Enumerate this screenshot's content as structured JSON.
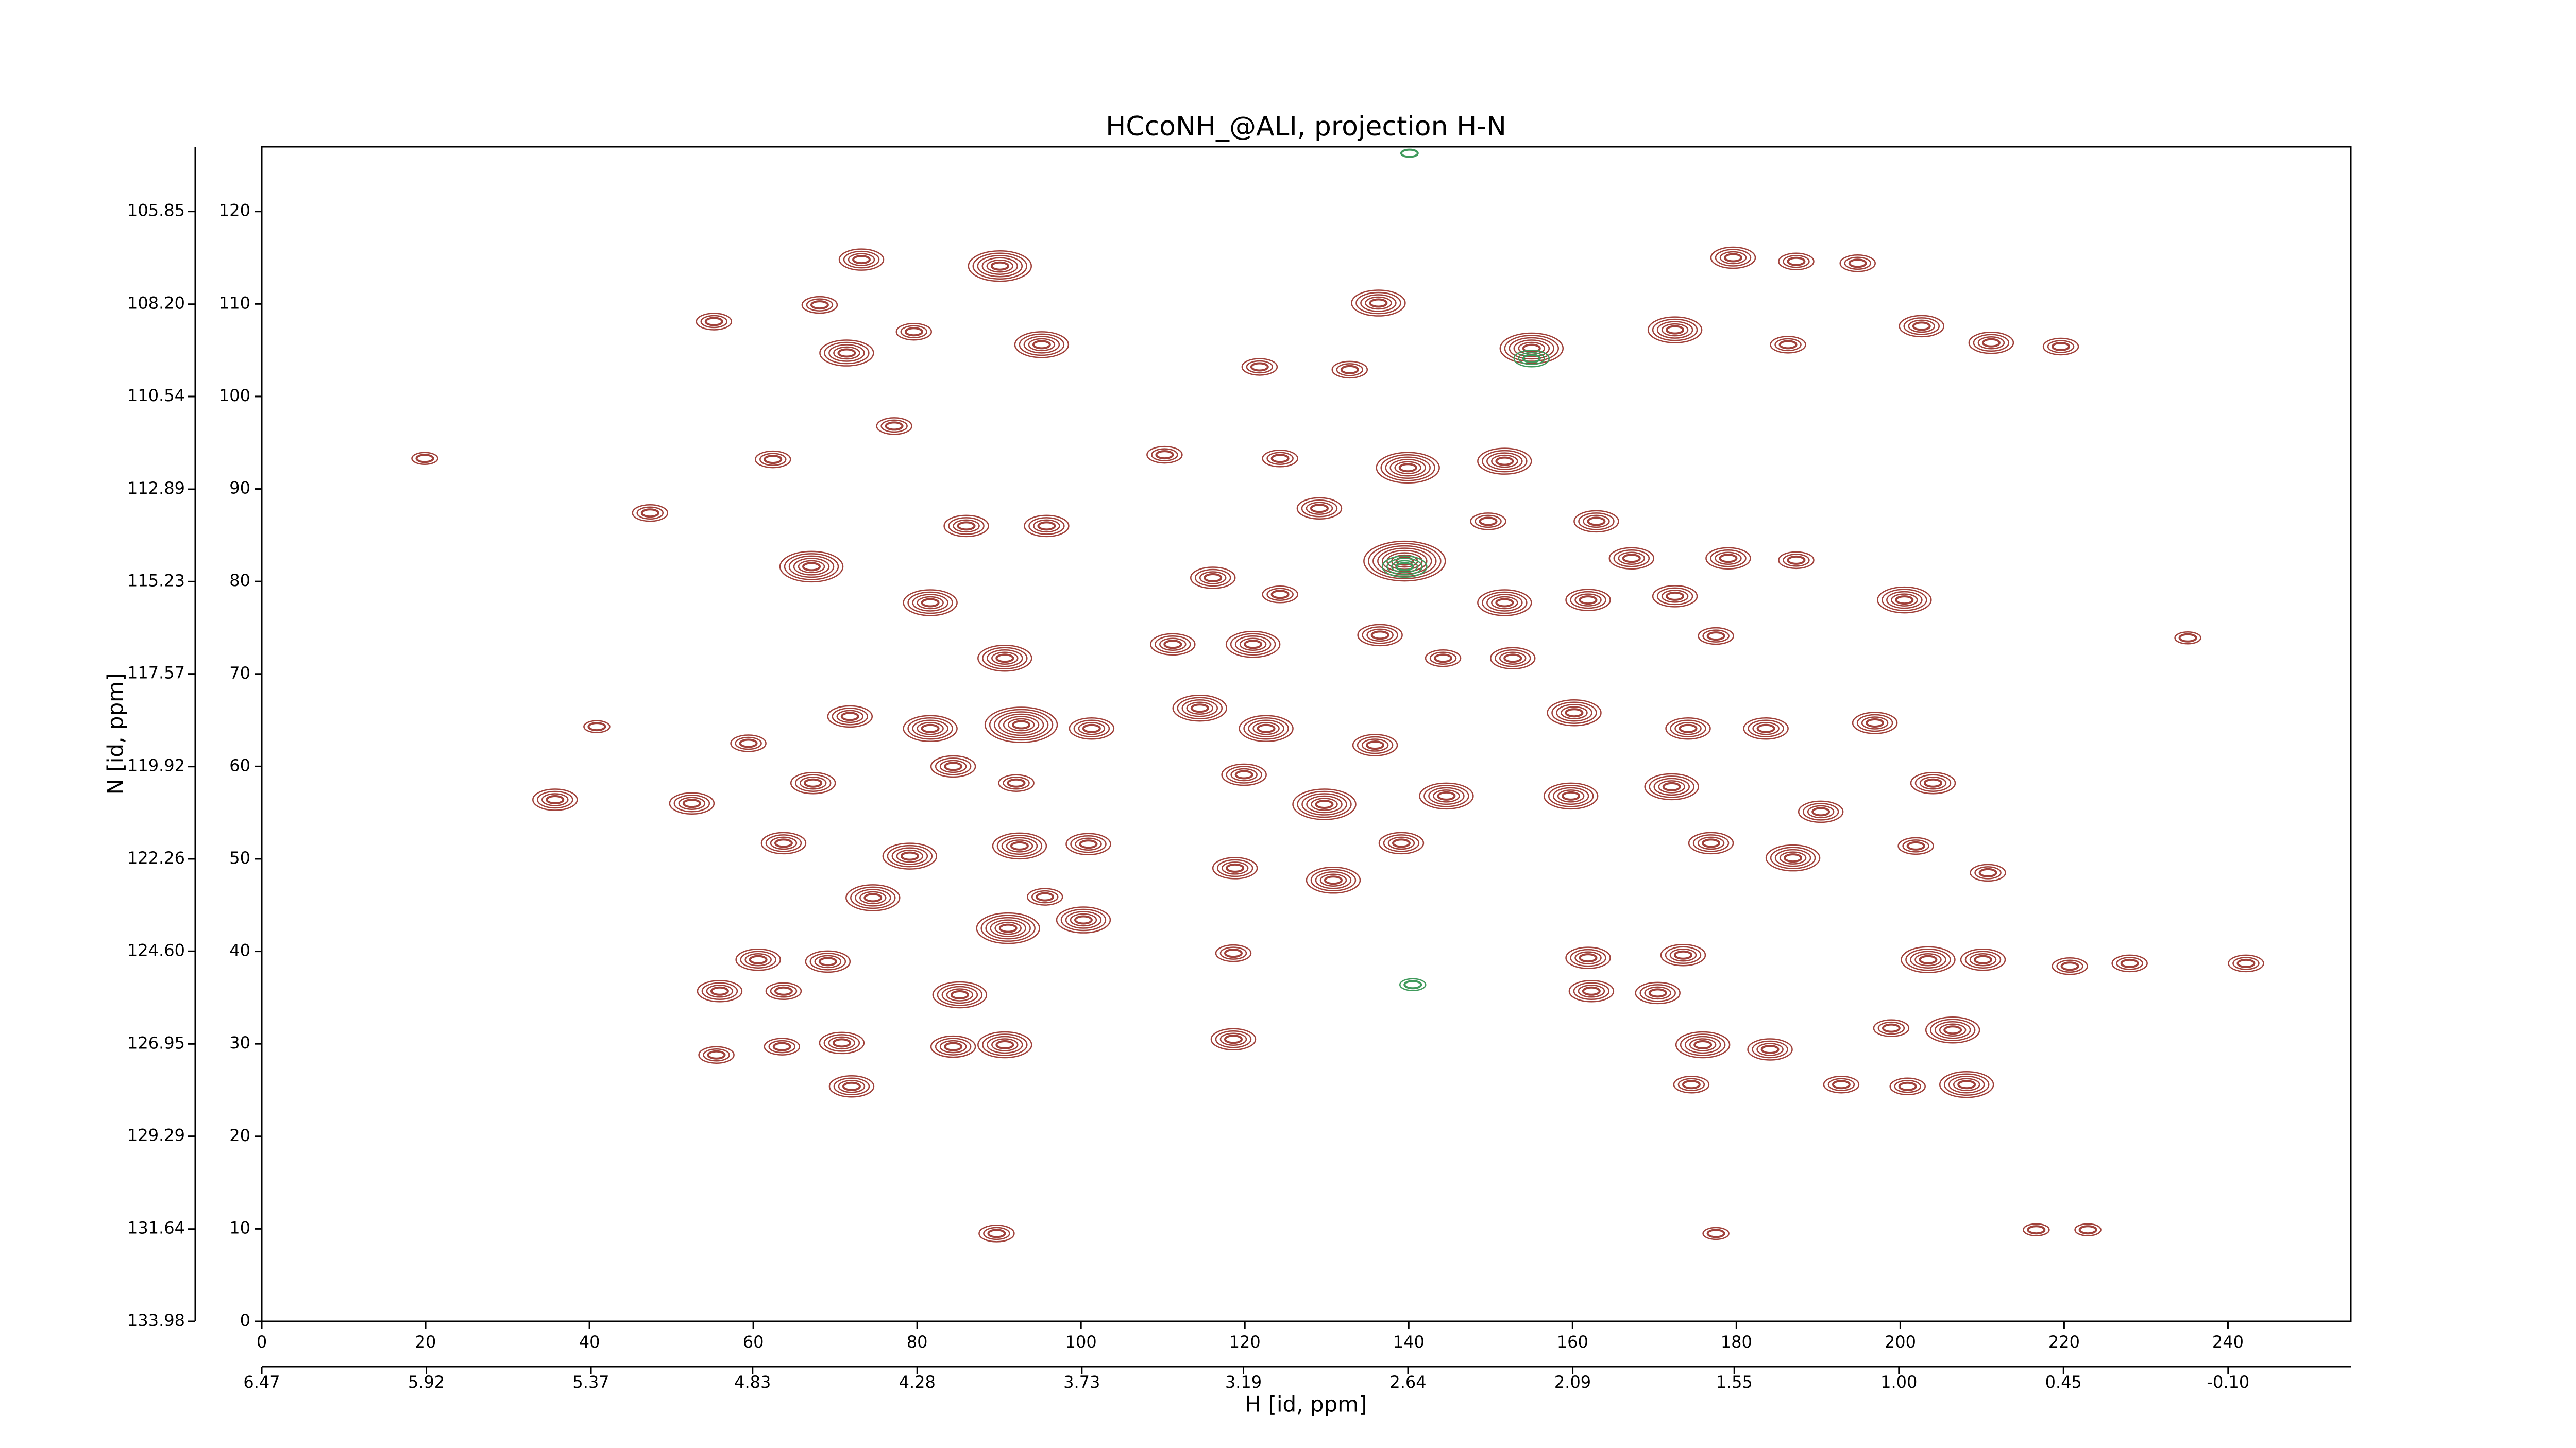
{
  "chart_data": {
    "type": "contour",
    "title": "HCcoNH_@ALI, projection H-N",
    "xlabel": "H [id, ppm]",
    "ylabel": "N [id, ppm]",
    "xlim": [
      0,
      255
    ],
    "xticks": [
      0,
      20,
      40,
      60,
      80,
      100,
      120,
      140,
      160,
      180,
      200,
      220,
      240
    ],
    "ylim": [
      0,
      127
    ],
    "yticks": [
      0,
      10,
      20,
      30,
      40,
      50,
      60,
      70,
      80,
      90,
      100,
      110,
      120
    ],
    "x2lim": [
      6.47,
      -0.51
    ],
    "x2ticks": [
      6.47,
      5.92,
      5.37,
      4.83,
      4.28,
      3.73,
      3.19,
      2.64,
      2.09,
      1.55,
      {
        "value": 1,
        "label": "1.00"
      },
      0.45,
      {
        "value": -0.1,
        "label": "-0.10"
      }
    ],
    "y2lim": [
      133.98,
      104.21
    ],
    "y2ticks": [
      133.98,
      131.64,
      129.29,
      126.95,
      {
        "value": 124.6,
        "label": "124.60"
      },
      122.26,
      119.92,
      117.57,
      115.23,
      112.89,
      110.54,
      {
        "value": 108.2,
        "label": "108.20"
      },
      105.85
    ],
    "series": [
      {
        "color": "#a0413a",
        "x": [
          73.2,
          90.1,
          71.4,
          95.2,
          79.6,
          68.1,
          55.2,
          136.3,
          121.8,
          132.8,
          155,
          179.6,
          187.3,
          194.8,
          172.5,
          186.3,
          202.6,
          211.1,
          219.6,
          62.4,
          77.2,
          110.2,
          124.3,
          139.9,
          151.7,
          129.1,
          86,
          95.8,
          67.1,
          139.5,
          149.7,
          162.9,
          167.2,
          179,
          187.3,
          200.5,
          151.7,
          161.9,
          172.5,
          116.1,
          124.3,
          81.6,
          90.7,
          111.2,
          121,
          136.5,
          144.2,
          152.7,
          177.5,
          235.1,
          59.4,
          71.8,
          81.6,
          92.7,
          101.3,
          114.5,
          122.6,
          135.9,
          160.2,
          174.1,
          183.6,
          196.9,
          67.3,
          84.4,
          92.1,
          119.9,
          129.7,
          144.6,
          159.8,
          172.1,
          204,
          190.3,
          35.8,
          52.5,
          63.7,
          79.1,
          92.5,
          100.9,
          118.8,
          130.8,
          139.1,
          176.9,
          186.9,
          201.9,
          210.7,
          74.6,
          91.1,
          100.3,
          95.6,
          118.6,
          161.9,
          173.5,
          203.4,
          210.1,
          220.7,
          228,
          242.2,
          60.6,
          69.1,
          55.9,
          63.7,
          85.2,
          162.3,
          170.4,
          175.9,
          184.1,
          206.4,
          198.9,
          90.7,
          84.4,
          70.8,
          63.5,
          55.5,
          118.6,
          72,
          174.5,
          192.8,
          208.1,
          200.9,
          89.7,
          177.5,
          216.6,
          222.9,
          19.9,
          47.4,
          40.9
        ],
        "y": [
          114.8,
          114.1,
          104.7,
          105.6,
          107,
          109.9,
          108.1,
          110.1,
          103.2,
          102.9,
          105.2,
          115,
          114.6,
          114.4,
          107.2,
          105.6,
          107.6,
          105.8,
          105.4,
          93.2,
          96.8,
          93.7,
          93.3,
          92.3,
          93,
          87.9,
          86,
          86,
          81.6,
          82.2,
          86.5,
          86.5,
          82.5,
          82.5,
          82.3,
          78,
          77.7,
          78,
          78.4,
          80.4,
          78.6,
          77.7,
          71.7,
          73.2,
          73.2,
          74.2,
          71.7,
          71.7,
          74.1,
          73.9,
          62.5,
          65.4,
          64.1,
          64.5,
          64.1,
          66.3,
          64.1,
          62.3,
          65.8,
          64.1,
          64.1,
          64.7,
          58.2,
          60,
          58.2,
          59.1,
          55.9,
          56.8,
          56.8,
          57.8,
          58.2,
          55.1,
          56.4,
          56,
          51.7,
          50.3,
          51.4,
          51.6,
          49,
          47.7,
          51.7,
          51.7,
          50.1,
          51.4,
          48.5,
          45.8,
          42.5,
          43.4,
          45.9,
          39.8,
          39.3,
          39.6,
          39.1,
          39.1,
          38.4,
          38.7,
          38.7,
          39.1,
          38.9,
          35.7,
          35.7,
          35.3,
          35.7,
          35.5,
          29.9,
          29.4,
          31.5,
          31.7,
          29.9,
          29.7,
          30.1,
          29.7,
          28.8,
          30.5,
          25.4,
          25.6,
          25.6,
          25.6,
          25.4,
          9.5,
          9.5,
          9.9,
          9.9,
          93.3,
          87.4,
          64.3
        ],
        "levels": [
          4,
          6,
          5,
          5,
          3,
          3,
          3,
          5,
          3,
          3,
          6,
          4,
          3,
          3,
          5,
          3,
          4,
          4,
          3,
          3,
          3,
          3,
          3,
          6,
          5,
          4,
          4,
          4,
          6,
          8,
          3,
          4,
          4,
          4,
          3,
          5,
          5,
          4,
          4,
          4,
          3,
          5,
          5,
          4,
          5,
          4,
          3,
          4,
          3,
          2,
          3,
          4,
          5,
          7,
          4,
          5,
          5,
          4,
          5,
          4,
          4,
          4,
          4,
          4,
          3,
          4,
          6,
          5,
          5,
          5,
          4,
          4,
          4,
          4,
          4,
          5,
          5,
          4,
          4,
          5,
          4,
          4,
          5,
          3,
          3,
          5,
          6,
          5,
          3,
          3,
          4,
          4,
          5,
          4,
          3,
          3,
          3,
          4,
          4,
          4,
          3,
          5,
          4,
          4,
          5,
          4,
          5,
          3,
          5,
          4,
          4,
          3,
          3,
          4,
          4,
          3,
          3,
          5,
          3,
          3,
          2,
          2,
          2,
          2,
          3,
          2
        ]
      },
      {
        "color": "#3f9a5c",
        "x": [
          139.5,
          140.5,
          155,
          140.1
        ],
        "y": [
          81.6,
          36.4,
          104.1,
          126.3
        ],
        "levels": [
          4,
          2,
          3,
          1
        ]
      }
    ]
  }
}
